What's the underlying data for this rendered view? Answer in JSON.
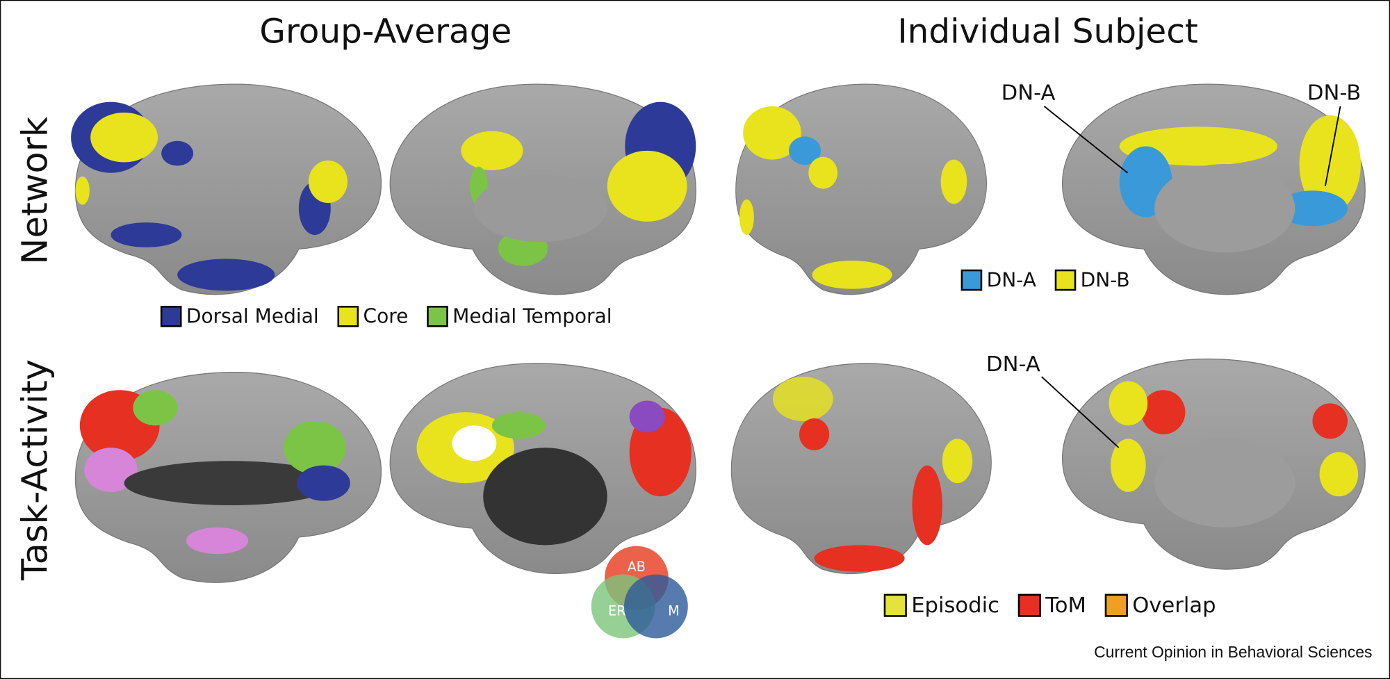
{
  "columns": [
    "Group-Average",
    "Individual Subject"
  ],
  "rows": [
    "Network",
    "Task-Activity"
  ],
  "annotations": [
    "DN-A",
    "DN-B",
    "DN-A"
  ],
  "legends": [
    {
      "items": [
        {
          "label": "Dorsal Medial",
          "color": "#2e3a97"
        },
        {
          "label": "Core",
          "color": "#e8e31c"
        },
        {
          "label": "Medial Temporal",
          "color": "#7cc445"
        }
      ]
    },
    {
      "items": [
        {
          "label": "DN-A",
          "color": "#3a9ad9"
        },
        {
          "label": "DN-B",
          "color": "#e8e31c"
        }
      ]
    },
    {
      "items": [
        {
          "label": "Episodic",
          "color": "#e3e33a"
        },
        {
          "label": "ToM",
          "color": "#e53022"
        },
        {
          "label": "Overlap",
          "color": "#f0a020"
        }
      ]
    }
  ],
  "venn": [
    "AB",
    "ER",
    "M"
  ],
  "credit": "Current Opinion in Behavioral Sciences"
}
